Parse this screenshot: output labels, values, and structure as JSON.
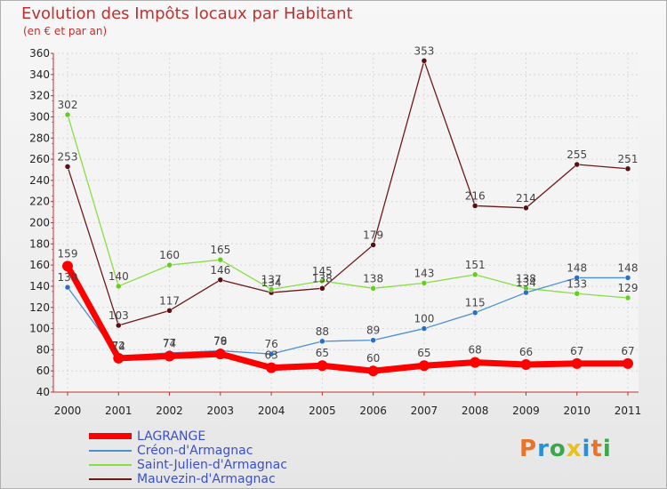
{
  "title": "Evolution des Impôts locaux par Habitant",
  "subtitle": "(en € et par an)",
  "logo": "Proxiti",
  "chart_data": {
    "type": "line",
    "x": [
      "2000",
      "2001",
      "2002",
      "2003",
      "2004",
      "2005",
      "2006",
      "2007",
      "2008",
      "2009",
      "2010",
      "2011"
    ],
    "ylim": [
      40,
      360
    ],
    "yticks": [
      40,
      60,
      80,
      100,
      120,
      140,
      160,
      180,
      200,
      220,
      240,
      260,
      280,
      300,
      320,
      340,
      360
    ],
    "grid": true,
    "legend_position": "bottom-left",
    "series": [
      {
        "name": "LAGRANGE",
        "color": "#ff0000",
        "values": [
          159,
          72,
          74,
          76,
          63,
          65,
          60,
          65,
          68,
          66,
          67,
          67
        ]
      },
      {
        "name": "Créon-d'Armagnac",
        "color": "#4a8fd0",
        "values": [
          139,
          74,
          77,
          79,
          76,
          88,
          89,
          100,
          115,
          134,
          148,
          148
        ]
      },
      {
        "name": "Saint-Julien-d'Armagnac",
        "color": "#88dd44",
        "values": [
          302,
          140,
          160,
          165,
          137,
          145,
          138,
          143,
          151,
          138,
          133,
          129
        ]
      },
      {
        "name": "Mauvezin-d'Armagnac",
        "color": "#6b1a1a",
        "values": [
          253,
          103,
          117,
          146,
          134,
          138,
          179,
          353,
          216,
          214,
          255,
          251
        ]
      }
    ]
  }
}
